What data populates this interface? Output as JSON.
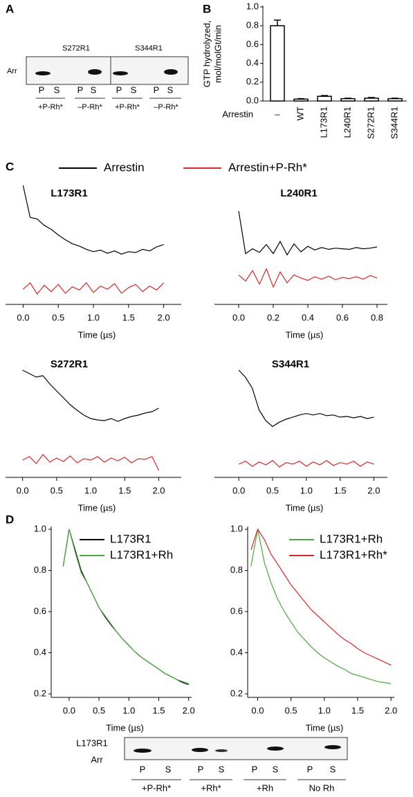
{
  "figure": {
    "panels": [
      "A",
      "B",
      "C",
      "D"
    ],
    "blot_a": {
      "lanes": [
        "S272R1",
        "S344R1"
      ],
      "row": "Arr",
      "ps": [
        "P",
        "S",
        "P",
        "S",
        "P",
        "S",
        "P",
        "S"
      ],
      "conditions": [
        "+P-Rh*",
        "–P-Rh*",
        "+P-Rh*",
        "–P-Rh*"
      ]
    },
    "blot_d": {
      "row": [
        "L173R1",
        "Arr"
      ],
      "ps": [
        "P",
        "S",
        "P",
        "S",
        "P",
        "S",
        "P",
        "S"
      ],
      "conditions": [
        "+P-Rh*",
        "+Rh*",
        "+Rh",
        "No Rh"
      ]
    }
  },
  "chart_data": [
    {
      "type": "bar",
      "ylabel": [
        "GTP hydrolyzed,",
        "mol/molGt/min"
      ],
      "xlabel": "Arrestin",
      "categories": [
        "–",
        "WT",
        "L173R1",
        "L240R1",
        "S272R1",
        "S344R1"
      ],
      "values": [
        0.8,
        0.02,
        0.05,
        0.025,
        0.03,
        0.025
      ],
      "errors": [
        0.06,
        0.005,
        0.008,
        0.005,
        0.007,
        0.005
      ],
      "ylim": [
        0,
        1.0
      ],
      "yticks": [
        {
          "value": 0,
          "label": "0.0"
        },
        0.2,
        0.4,
        0.6,
        0.8,
        {
          "value": 1,
          "label": "1.0"
        }
      ]
    },
    {
      "type": "line",
      "title": "L173R1",
      "xlabel": "Time (µs)",
      "xlim": [
        -0.25,
        2.25
      ],
      "xticks": [
        {
          "value": 0,
          "label": "0.0"
        },
        0.5,
        {
          "value": 1,
          "label": "1.0"
        },
        1.5,
        {
          "value": 2,
          "label": "2.0"
        }
      ],
      "x": [
        0,
        0.1,
        0.2,
        0.3,
        0.4,
        0.5,
        0.6,
        0.7,
        0.8,
        0.9,
        1.0,
        1.1,
        1.2,
        1.3,
        1.4,
        1.5,
        1.6,
        1.7,
        1.8,
        1.9,
        2.0
      ],
      "series": [
        {
          "name": "Arrestin",
          "color": "#000000",
          "values": [
            1.0,
            0.6,
            0.58,
            0.5,
            0.45,
            0.38,
            0.32,
            0.27,
            0.24,
            0.2,
            0.17,
            0.19,
            0.15,
            0.18,
            0.14,
            0.17,
            0.16,
            0.2,
            0.18,
            0.23,
            0.26
          ]
        },
        {
          "name": "Arrestin+P-Rh*",
          "color": "#d42a2a",
          "values": [
            -0.3,
            -0.22,
            -0.36,
            -0.25,
            -0.33,
            -0.24,
            -0.35,
            -0.27,
            -0.31,
            -0.22,
            -0.34,
            -0.26,
            -0.3,
            -0.23,
            -0.35,
            -0.28,
            -0.24,
            -0.33,
            -0.26,
            -0.31,
            -0.22
          ]
        }
      ]
    },
    {
      "type": "line",
      "title": "L240R1",
      "xlabel": "Time (µs)",
      "xlim": [
        -0.14,
        0.86
      ],
      "xticks": [
        {
          "value": 0,
          "label": "0.0"
        },
        0.2,
        0.4,
        0.6,
        0.8
      ],
      "x": [
        0,
        0.04,
        0.08,
        0.12,
        0.16,
        0.2,
        0.24,
        0.28,
        0.32,
        0.36,
        0.4,
        0.44,
        0.48,
        0.52,
        0.56,
        0.6,
        0.64,
        0.68,
        0.72,
        0.76,
        0.8
      ],
      "series": [
        {
          "color": "#000000",
          "values": [
            1.0,
            0.3,
            0.38,
            0.32,
            0.45,
            0.3,
            0.5,
            0.28,
            0.46,
            0.33,
            0.42,
            0.36,
            0.4,
            0.37,
            0.39,
            0.38,
            0.37,
            0.4,
            0.38,
            0.39,
            0.41
          ]
        },
        {
          "color": "#d42a2a",
          "values": [
            -0.05,
            -0.15,
            0.02,
            -0.2,
            0.05,
            -0.25,
            0.0,
            -0.18,
            -0.05,
            -0.1,
            -0.14,
            -0.08,
            -0.12,
            -0.07,
            -0.13,
            -0.09,
            -0.11,
            -0.08,
            -0.12,
            -0.06,
            -0.1
          ]
        }
      ]
    },
    {
      "type": "line",
      "title": "S272R1",
      "xlabel": "Time (µs)",
      "xlim": [
        -0.25,
        2.33
      ],
      "xticks": [
        {
          "value": 0,
          "label": "0.0"
        },
        0.5,
        {
          "value": 1,
          "label": "1.0"
        },
        1.5,
        {
          "value": 2,
          "label": "2.0"
        }
      ],
      "x": [
        0,
        0.1,
        0.2,
        0.3,
        0.4,
        0.5,
        0.6,
        0.7,
        0.8,
        0.9,
        1.0,
        1.1,
        1.2,
        1.3,
        1.4,
        1.5,
        1.6,
        1.7,
        1.8,
        1.9,
        2.0
      ],
      "series": [
        {
          "color": "#000000",
          "values": [
            1.0,
            0.95,
            0.9,
            0.92,
            0.8,
            0.7,
            0.6,
            0.5,
            0.42,
            0.35,
            0.3,
            0.28,
            0.27,
            0.3,
            0.26,
            0.3,
            0.33,
            0.35,
            0.38,
            0.4,
            0.45
          ]
        },
        {
          "color": "#d42a2a",
          "values": [
            -0.3,
            -0.25,
            -0.35,
            -0.22,
            -0.33,
            -0.27,
            -0.32,
            -0.24,
            -0.34,
            -0.28,
            -0.3,
            -0.25,
            -0.33,
            -0.27,
            -0.31,
            -0.26,
            -0.34,
            -0.28,
            -0.29,
            -0.25,
            -0.45
          ]
        }
      ]
    },
    {
      "type": "line",
      "title": "S344R1",
      "xlabel": "Time (µs)",
      "xlim": [
        -0.36,
        2.2
      ],
      "xticks": [
        {
          "value": 0,
          "label": "0.0"
        },
        0.5,
        {
          "value": 1,
          "label": "1.0"
        },
        1.5,
        {
          "value": 2,
          "label": "2.0"
        }
      ],
      "x": [
        0,
        0.1,
        0.2,
        0.3,
        0.4,
        0.5,
        0.6,
        0.7,
        0.8,
        0.9,
        1.0,
        1.1,
        1.2,
        1.3,
        1.4,
        1.5,
        1.6,
        1.7,
        1.8,
        1.9,
        2.0
      ],
      "series": [
        {
          "color": "#000000",
          "values": [
            1.0,
            0.9,
            0.75,
            0.45,
            0.3,
            0.22,
            0.28,
            0.32,
            0.35,
            0.38,
            0.4,
            0.38,
            0.4,
            0.37,
            0.38,
            0.35,
            0.36,
            0.34,
            0.36,
            0.33,
            0.35
          ]
        },
        {
          "color": "#d42a2a",
          "values": [
            -0.3,
            -0.26,
            -0.33,
            -0.27,
            -0.31,
            -0.25,
            -0.34,
            -0.28,
            -0.3,
            -0.26,
            -0.33,
            -0.27,
            -0.31,
            -0.25,
            -0.32,
            -0.28,
            -0.3,
            -0.26,
            -0.33,
            -0.27,
            -0.3
          ]
        }
      ]
    },
    {
      "type": "line",
      "xlabel": "Time (µs)",
      "xlim": [
        -0.3,
        2.05
      ],
      "ylim": [
        0.2,
        1.0
      ],
      "xticks": [
        {
          "value": 0,
          "label": "0.0"
        },
        0.5,
        {
          "value": 1,
          "label": "1.0"
        },
        1.5,
        {
          "value": 2,
          "label": "2.0"
        }
      ],
      "yticks": [
        0.2,
        0.4,
        0.6,
        0.8,
        {
          "value": 1,
          "label": "1.0"
        }
      ],
      "x": [
        -0.1,
        0,
        0.1,
        0.2,
        0.3,
        0.4,
        0.5,
        0.6,
        0.7,
        0.8,
        0.9,
        1.0,
        1.1,
        1.2,
        1.3,
        1.4,
        1.5,
        1.6,
        1.7,
        1.8,
        1.9,
        2.0
      ],
      "series": [
        {
          "name": "L173R1",
          "color": "#000000",
          "values": [
            0.82,
            1.0,
            0.9,
            0.8,
            0.74,
            0.68,
            0.62,
            0.575,
            0.535,
            0.5,
            0.465,
            0.435,
            0.405,
            0.38,
            0.36,
            0.34,
            0.32,
            0.3,
            0.285,
            0.27,
            0.255,
            0.245
          ]
        },
        {
          "name": "L173R1+Rh",
          "color": "#4aa83f",
          "values": [
            0.82,
            1.0,
            0.89,
            0.79,
            0.74,
            0.68,
            0.62,
            0.58,
            0.54,
            0.5,
            0.465,
            0.435,
            0.405,
            0.38,
            0.36,
            0.34,
            0.32,
            0.3,
            0.285,
            0.27,
            0.26,
            0.25
          ]
        }
      ]
    },
    {
      "type": "line",
      "xlabel": "Time (µs)",
      "xlim": [
        -0.15,
        2.05
      ],
      "ylim": [
        0.2,
        1.0
      ],
      "xticks": [
        {
          "value": 0,
          "label": "0.0"
        },
        0.5,
        {
          "value": 1,
          "label": "1.0"
        },
        1.5,
        {
          "value": 2,
          "label": "2.0"
        }
      ],
      "yticks": [
        0.2,
        0.4,
        0.6,
        0.8,
        {
          "value": 1,
          "label": "1.0"
        }
      ],
      "x": [
        -0.1,
        0,
        0.1,
        0.2,
        0.3,
        0.4,
        0.5,
        0.6,
        0.7,
        0.8,
        0.9,
        1.0,
        1.1,
        1.2,
        1.3,
        1.4,
        1.5,
        1.6,
        1.7,
        1.8,
        1.9,
        2.0
      ],
      "series": [
        {
          "name": "L173R1+Rh",
          "color": "#4aa83f",
          "values": [
            0.82,
            1.0,
            0.84,
            0.74,
            0.66,
            0.6,
            0.55,
            0.5,
            0.465,
            0.43,
            0.4,
            0.375,
            0.355,
            0.335,
            0.32,
            0.3,
            0.29,
            0.28,
            0.27,
            0.26,
            0.255,
            0.25
          ]
        },
        {
          "name": "L173R1+Rh*",
          "color": "#d42a2a",
          "values": [
            0.9,
            1.0,
            0.95,
            0.88,
            0.83,
            0.78,
            0.73,
            0.69,
            0.65,
            0.61,
            0.58,
            0.55,
            0.52,
            0.49,
            0.465,
            0.445,
            0.42,
            0.4,
            0.385,
            0.37,
            0.355,
            0.34
          ]
        }
      ]
    }
  ]
}
